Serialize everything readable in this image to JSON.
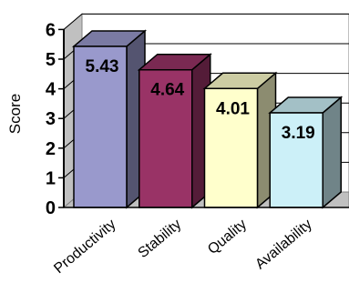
{
  "chart_data": {
    "type": "bar",
    "title": "",
    "xlabel": "",
    "ylabel": "Score",
    "ylim": [
      0,
      6
    ],
    "yticks": [
      "0",
      "1",
      "2",
      "3",
      "4",
      "5",
      "6"
    ],
    "grid": true,
    "three_d": true,
    "categories": [
      "Productivity",
      "Stability",
      "Quality",
      "Availability"
    ],
    "values": [
      5.43,
      4.64,
      4.01,
      3.19
    ],
    "data_labels": [
      "5.43",
      "4.64",
      "4.01",
      "3.19"
    ],
    "colors": [
      "#9999cc",
      "#993366",
      "#ffffcc",
      "#ccf0f8"
    ]
  }
}
